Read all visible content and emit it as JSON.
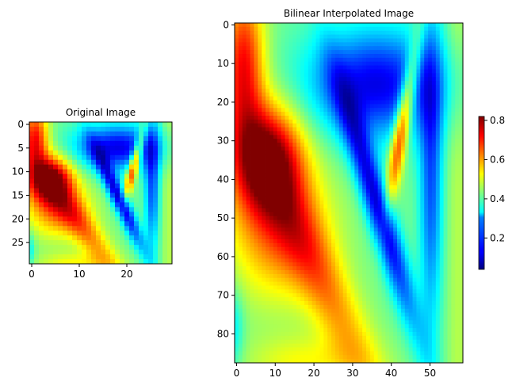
{
  "chart_data": [
    {
      "type": "heatmap",
      "title": "Original Image",
      "colormap": "jet",
      "shape": [
        30,
        30
      ],
      "xlim": [
        -0.5,
        29.5
      ],
      "ylim": [
        29.5,
        -0.5
      ],
      "xticks": [
        0,
        10,
        20
      ],
      "yticks": [
        0,
        5,
        10,
        15,
        20,
        25
      ],
      "xticklabels": [
        "0",
        "10",
        "20"
      ],
      "yticklabels": [
        "0",
        "5",
        "10",
        "15",
        "20",
        "25"
      ]
    },
    {
      "type": "heatmap",
      "title": "Bilinear Interpolated Image",
      "colormap": "jet",
      "shape": [
        88,
        59
      ],
      "xlim": [
        -0.5,
        58.5
      ],
      "ylim": [
        87.5,
        -0.5
      ],
      "xticks": [
        0,
        10,
        20,
        30,
        40,
        50
      ],
      "yticks": [
        0,
        10,
        20,
        30,
        40,
        50,
        60,
        70,
        80
      ],
      "xticklabels": [
        "0",
        "10",
        "20",
        "30",
        "40",
        "50"
      ],
      "yticklabels": [
        "0",
        "10",
        "20",
        "30",
        "40",
        "50",
        "60",
        "70",
        "80"
      ]
    }
  ],
  "colorbar": {
    "range": [
      0.04,
      0.82
    ],
    "ticks": [
      0.2,
      0.4,
      0.6,
      0.8
    ],
    "ticklabels": [
      "0.2",
      "0.4",
      "0.6",
      "0.8"
    ],
    "colormap": "jet"
  },
  "colors": {
    "axis": "#000000",
    "background": "#ffffff"
  }
}
